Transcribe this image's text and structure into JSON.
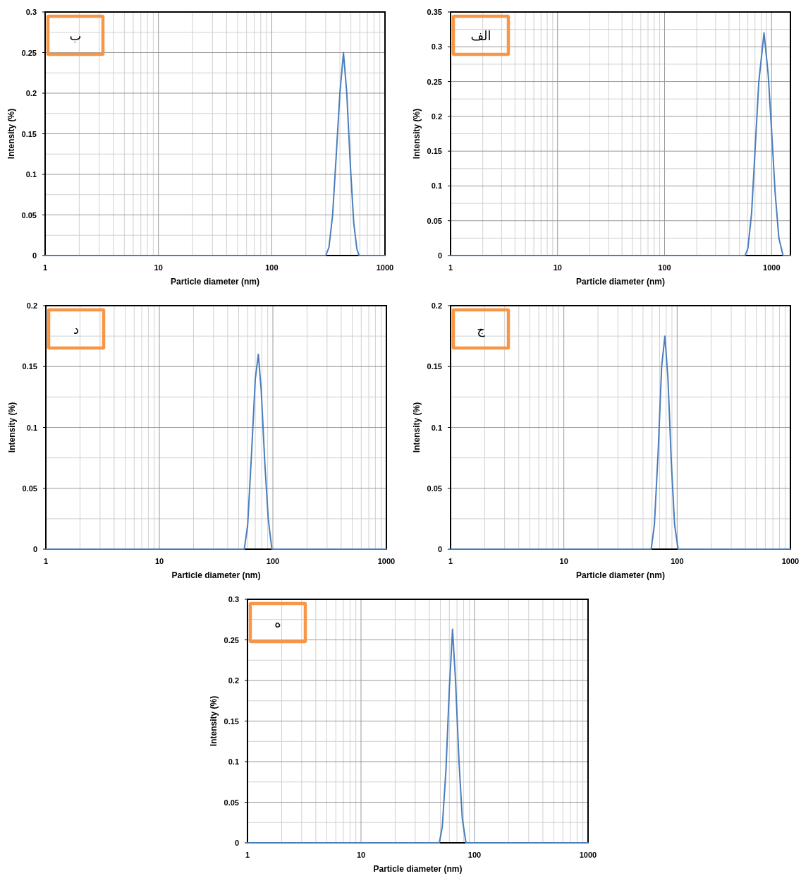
{
  "chart_data": [
    {
      "type": "line",
      "xlabel": "Particle diameter (nm)",
      "ylabel": "Intensity (%)",
      "annotations": [
        "ب"
      ],
      "log": "x",
      "grid": true,
      "xlim": [
        1,
        1000
      ],
      "ylim": [
        0,
        0.3
      ],
      "xticks": [
        1,
        10,
        100,
        1000
      ],
      "yticks": [
        0,
        0.05,
        0.1,
        0.15,
        0.2,
        0.25,
        0.3
      ],
      "series": [
        {
          "color": "#4a7ebb",
          "x": [
            1,
            300,
            320,
            345,
            370,
            400,
            430,
            460,
            495,
            530,
            565,
            590,
            1000
          ],
          "values": [
            0,
            0,
            0.01,
            0.05,
            0.12,
            0.2,
            0.25,
            0.2,
            0.11,
            0.04,
            0.008,
            0,
            0
          ]
        }
      ]
    },
    {
      "type": "line",
      "xlabel": "Particle diameter (nm)",
      "ylabel": "Intensity (%)",
      "annotations": [
        "الف"
      ],
      "log": "x",
      "grid": true,
      "xlim": [
        1,
        1500
      ],
      "ylim": [
        0,
        0.35
      ],
      "xticks": [
        1,
        10,
        100,
        1000
      ],
      "yticks": [
        0,
        0.05,
        0.1,
        0.15,
        0.2,
        0.25,
        0.3,
        0.35
      ],
      "series": [
        {
          "color": "#4a7ebb",
          "x": [
            1,
            565,
            600,
            650,
            700,
            760,
            850,
            930,
            1000,
            1080,
            1170,
            1280,
            1500
          ],
          "values": [
            0,
            0,
            0.01,
            0.06,
            0.15,
            0.25,
            0.32,
            0.26,
            0.18,
            0.09,
            0.025,
            0,
            0
          ]
        }
      ]
    },
    {
      "type": "line",
      "xlabel": "Particle diameter (nm)",
      "ylabel": "Intensity (%)",
      "annotations": [
        "د"
      ],
      "log": "x",
      "grid": true,
      "xlim": [
        1,
        1000
      ],
      "ylim": [
        0,
        0.2
      ],
      "xticks": [
        1,
        10,
        100,
        1000
      ],
      "yticks": [
        0,
        0.05,
        0.1,
        0.15,
        0.2
      ],
      "series": [
        {
          "color": "#4a7ebb",
          "x": [
            1,
            56,
            60,
            65,
            70,
            74.5,
            79,
            85,
            91,
            98,
            1000
          ],
          "values": [
            0,
            0,
            0.02,
            0.08,
            0.14,
            0.16,
            0.13,
            0.07,
            0.025,
            0,
            0
          ]
        }
      ]
    },
    {
      "type": "line",
      "xlabel": "Particle diameter (nm)",
      "ylabel": "Intensity (%)",
      "annotations": [
        "ج"
      ],
      "log": "x",
      "grid": true,
      "xlim": [
        1,
        1000
      ],
      "ylim": [
        0,
        0.2
      ],
      "xticks": [
        1,
        10,
        100,
        1000
      ],
      "yticks": [
        0,
        0.05,
        0.1,
        0.15,
        0.2
      ],
      "series": [
        {
          "color": "#4a7ebb",
          "x": [
            1,
            59,
            63,
            68,
            73,
            78,
            83,
            89,
            95,
            102,
            1000
          ],
          "values": [
            0,
            0,
            0.02,
            0.08,
            0.15,
            0.175,
            0.14,
            0.07,
            0.02,
            0,
            0
          ]
        }
      ]
    },
    {
      "type": "line",
      "xlabel": "Particle diameter (nm)",
      "ylabel": "Intensity (%)",
      "annotations": [
        "ه"
      ],
      "log": "x",
      "grid": true,
      "xlim": [
        1,
        1000
      ],
      "ylim": [
        0,
        0.3
      ],
      "xticks": [
        1,
        10,
        100,
        1000
      ],
      "yticks": [
        0,
        0.05,
        0.1,
        0.15,
        0.2,
        0.25,
        0.3
      ],
      "series": [
        {
          "color": "#4a7ebb",
          "x": [
            1,
            49,
            52,
            56,
            60,
            64,
            68,
            73,
            78,
            84,
            1000
          ],
          "values": [
            0,
            0,
            0.02,
            0.09,
            0.19,
            0.263,
            0.2,
            0.1,
            0.03,
            0,
            0
          ]
        }
      ]
    }
  ]
}
